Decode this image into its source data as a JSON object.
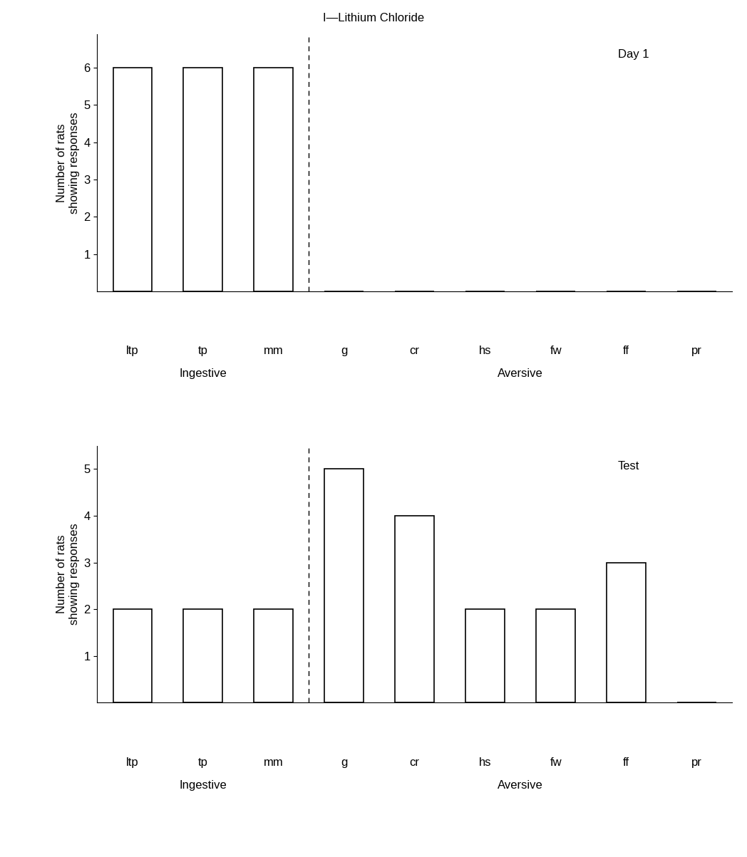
{
  "title": "I—Lithium Chloride",
  "chart_data": [
    {
      "type": "bar",
      "title": "Day 1",
      "categories": [
        "ltp",
        "tp",
        "mm",
        "g",
        "cr",
        "hs",
        "fw",
        "ff",
        "pr"
      ],
      "values": [
        6,
        6,
        6,
        0,
        0,
        0,
        0,
        0,
        0
      ],
      "ylabel": "Number of rats\nshowing responses",
      "ylim": [
        0,
        6.9
      ],
      "yticks": [
        1,
        2,
        3,
        4,
        5,
        6
      ],
      "groups": [
        {
          "label": "Ingestive",
          "categories": [
            "ltp",
            "tp",
            "mm"
          ]
        },
        {
          "label": "Aversive",
          "categories": [
            "g",
            "cr",
            "hs",
            "fw",
            "ff",
            "pr"
          ]
        }
      ],
      "color": "#ffffff"
    },
    {
      "type": "bar",
      "title": "Test",
      "categories": [
        "ltp",
        "tp",
        "mm",
        "g",
        "cr",
        "hs",
        "fw",
        "ff",
        "pr"
      ],
      "values": [
        2,
        2,
        2,
        5,
        4,
        2,
        2,
        3,
        0
      ],
      "ylabel": "Number of rats\nshowing responses",
      "ylim": [
        0,
        5.5
      ],
      "yticks": [
        1,
        2,
        3,
        4,
        5
      ],
      "groups": [
        {
          "label": "Ingestive",
          "categories": [
            "ltp",
            "tp",
            "mm"
          ]
        },
        {
          "label": "Aversive",
          "categories": [
            "g",
            "cr",
            "hs",
            "fw",
            "ff",
            "pr"
          ]
        }
      ],
      "color": "#ffffff"
    }
  ]
}
